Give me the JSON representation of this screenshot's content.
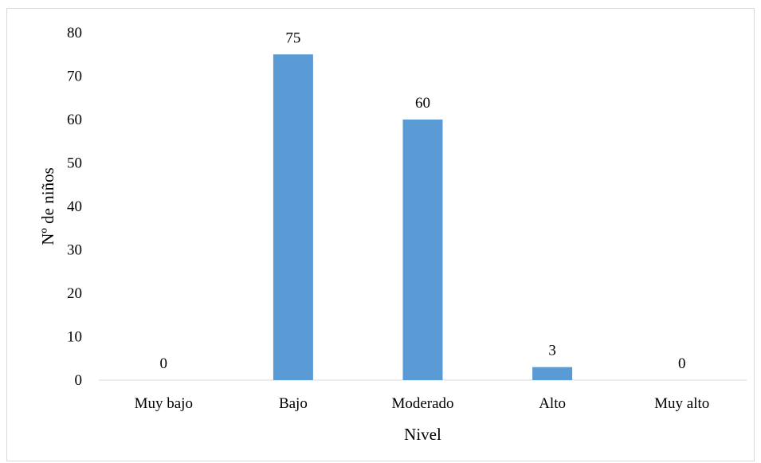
{
  "chart_data": {
    "type": "bar",
    "title": "",
    "xlabel": "Nivel",
    "ylabel": "Nº de niños",
    "categories": [
      "Muy bajo",
      "Bajo",
      "Moderado",
      "Alto",
      "Muy alto"
    ],
    "values": [
      0,
      75,
      60,
      3,
      0
    ],
    "data_labels": [
      "0",
      "75",
      "60",
      "3",
      "0"
    ],
    "yticks": [
      "0",
      "10",
      "20",
      "30",
      "40",
      "50",
      "60",
      "70",
      "80"
    ],
    "ylim": [
      0,
      80
    ],
    "grid": false,
    "legend": "none",
    "bar_color": "#5b9bd5",
    "axis_color": "#d9d9d9"
  }
}
